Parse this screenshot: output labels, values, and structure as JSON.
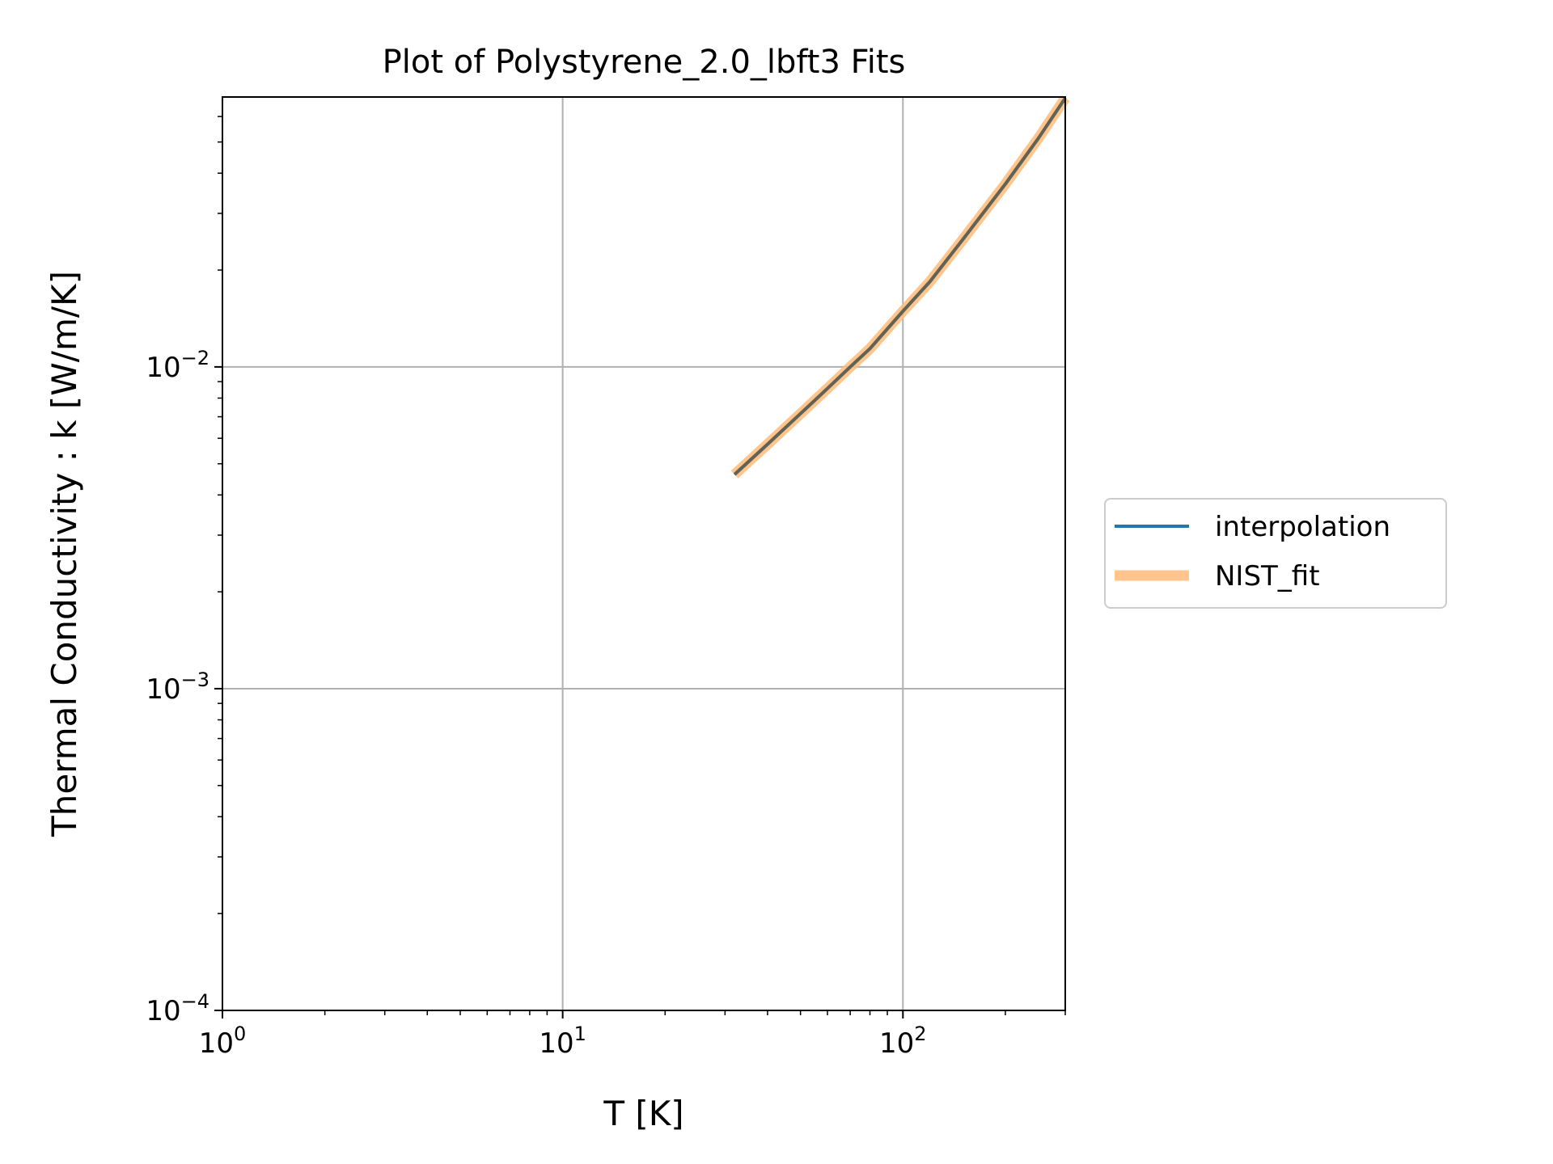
{
  "chart_data": {
    "type": "line",
    "title": "Plot of Polystyrene_2.0_lbft3 Fits",
    "xlabel": "T [K]",
    "ylabel": "Thermal Conductivity : k [W/m/K]",
    "x_scale": "log",
    "y_scale": "log",
    "xlim": [
      1,
      300
    ],
    "ylim": [
      0.0001,
      0.069
    ],
    "grid": true,
    "legend_position": "center-right outside plot",
    "x_ticks": [
      {
        "value": 1,
        "base": "10",
        "exp": "0"
      },
      {
        "value": 10,
        "base": "10",
        "exp": "1"
      },
      {
        "value": 100,
        "base": "10",
        "exp": "2"
      }
    ],
    "y_ticks": [
      {
        "value": 0.0001,
        "base": "10",
        "exp": "−4"
      },
      {
        "value": 0.001,
        "base": "10",
        "exp": "−3"
      },
      {
        "value": 0.01,
        "base": "10",
        "exp": "−2"
      }
    ],
    "series": [
      {
        "name": "interpolation",
        "color": "#1f77b4",
        "x": [
          32,
          40,
          50,
          60,
          70,
          80,
          100,
          120,
          150,
          200,
          250,
          300
        ],
        "y": [
          0.00463,
          0.00575,
          0.00716,
          0.00857,
          0.01,
          0.0114,
          0.0149,
          0.0184,
          0.0249,
          0.037,
          0.0513,
          0.0685
        ]
      },
      {
        "name": "NIST_fit",
        "color": "#ffbb78",
        "x": [
          32,
          40,
          50,
          60,
          70,
          80,
          100,
          120,
          150,
          200,
          250,
          300
        ],
        "y": [
          0.00463,
          0.00575,
          0.00716,
          0.00857,
          0.01,
          0.0114,
          0.0149,
          0.0184,
          0.0249,
          0.037,
          0.0513,
          0.0685
        ]
      }
    ]
  }
}
